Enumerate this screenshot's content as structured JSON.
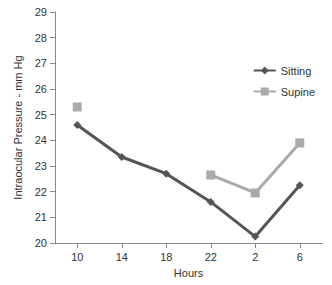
{
  "chart_data": {
    "type": "line",
    "x_label": "Hours",
    "y_label": "Intraocular Pressure - mm Hg",
    "categories": [
      "10",
      "14",
      "18",
      "22",
      "2",
      "6"
    ],
    "series": [
      {
        "name": "Sitting",
        "color": "#555555",
        "marker": "diamond",
        "values": [
          24.6,
          23.35,
          22.7,
          21.6,
          20.25,
          22.25
        ]
      },
      {
        "name": "Supine",
        "color": "#aaaaaa",
        "marker": "square",
        "values": [
          25.3,
          null,
          null,
          22.65,
          21.95,
          23.9
        ]
      }
    ],
    "ylim": [
      20,
      29
    ],
    "yticks": [
      20,
      21,
      22,
      23,
      24,
      25,
      26,
      27,
      28,
      29
    ],
    "grid": false,
    "legend": "upper right"
  }
}
